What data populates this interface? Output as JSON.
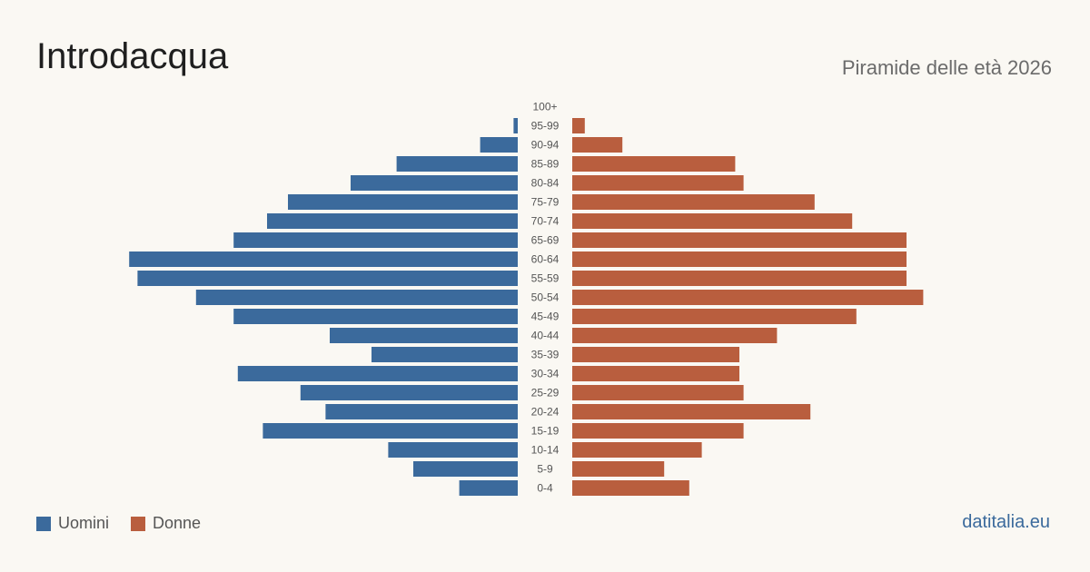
{
  "header": {
    "title": "Introdacqua",
    "subtitle": "Piramide delle età 2026"
  },
  "legend": {
    "male_label": "Uomini",
    "female_label": "Donne"
  },
  "brand": {
    "label": "datitalia.eu"
  },
  "colors": {
    "male": "#3b6a9c",
    "female": "#b95e3e",
    "brand": "#3b6a9c",
    "tick_label": "#555555"
  },
  "chart_data": {
    "type": "bar",
    "orientation": "horizontal-pyramid",
    "categories": [
      "100+",
      "95-99",
      "90-94",
      "85-89",
      "80-84",
      "75-79",
      "70-74",
      "65-69",
      "60-64",
      "55-59",
      "50-54",
      "45-49",
      "40-44",
      "35-39",
      "30-34",
      "25-29",
      "20-24",
      "15-19",
      "10-14",
      "5-9",
      "0-4"
    ],
    "series": [
      {
        "name": "Uomini",
        "values": [
          0,
          1,
          9,
          29,
          40,
          55,
          60,
          68,
          93,
          91,
          77,
          68,
          45,
          35,
          67,
          52,
          46,
          61,
          31,
          25,
          14
        ]
      },
      {
        "name": "Donne",
        "values": [
          0,
          3,
          12,
          39,
          41,
          58,
          67,
          80,
          80,
          80,
          84,
          68,
          49,
          40,
          40,
          41,
          57,
          41,
          31,
          22,
          28
        ]
      }
    ],
    "xlim": [
      0,
      100
    ],
    "grid": false,
    "legend_position": "bottom-left"
  }
}
